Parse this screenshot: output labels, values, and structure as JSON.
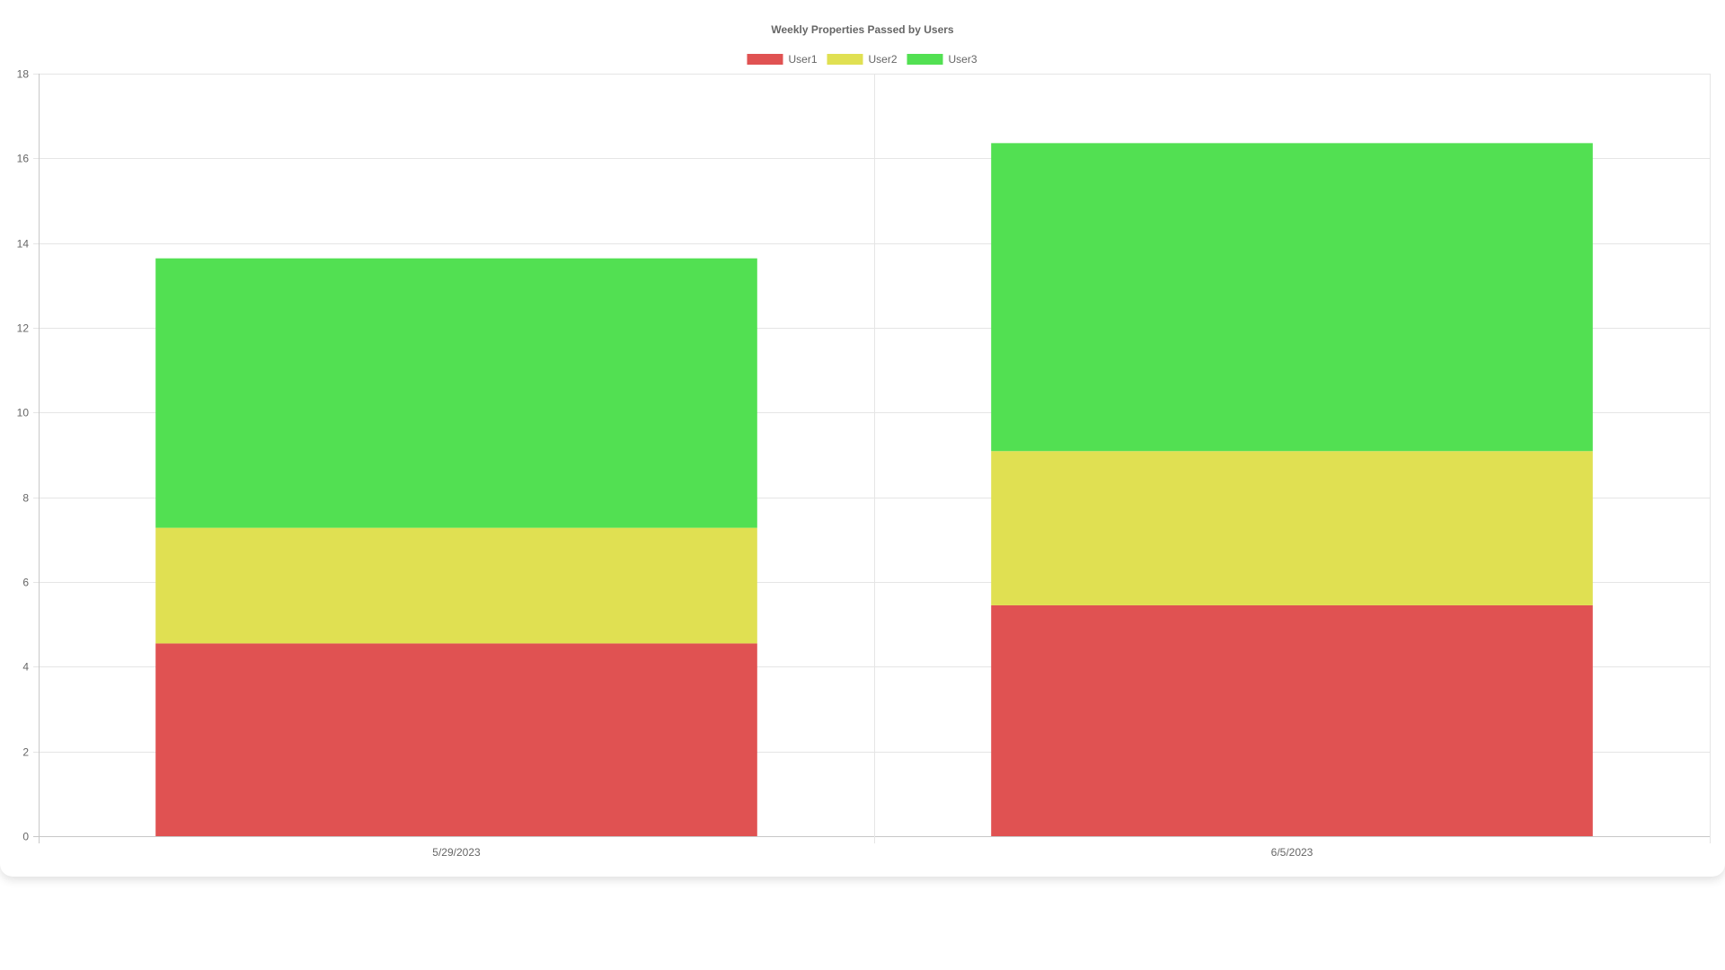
{
  "chart_data": {
    "type": "bar",
    "stacked": true,
    "title": "Weekly Properties Passed by Users",
    "categories": [
      "5/29/2023",
      "6/5/2023"
    ],
    "series": [
      {
        "name": "User1",
        "color": "#e05252",
        "values": [
          4.55,
          5.45
        ]
      },
      {
        "name": "User2",
        "color": "#e0e052",
        "values": [
          2.73,
          3.64
        ]
      },
      {
        "name": "User3",
        "color": "#52e052",
        "values": [
          6.36,
          7.27
        ]
      }
    ],
    "ylim": [
      0,
      18
    ],
    "yticks": [
      0,
      2,
      4,
      6,
      8,
      10,
      12,
      14,
      16,
      18
    ],
    "grid": true,
    "legend": "top-center",
    "xlabel": "",
    "ylabel": ""
  }
}
